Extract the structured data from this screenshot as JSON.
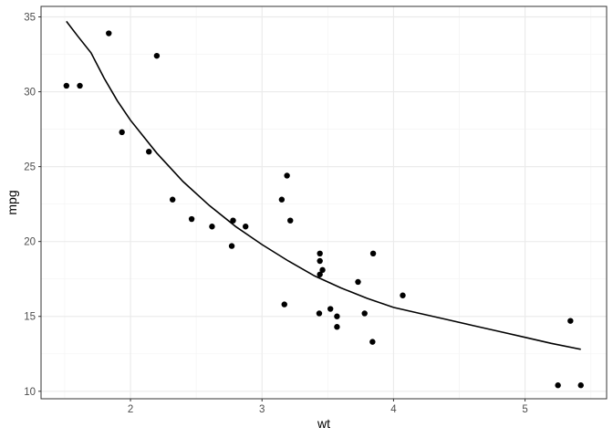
{
  "chart_data": {
    "type": "scatter",
    "title": "",
    "xlabel": "wt",
    "ylabel": "mpg",
    "xlim": [
      1.32,
      5.62
    ],
    "ylim": [
      9.5,
      35.7
    ],
    "x_ticks": [
      2,
      3,
      4,
      5
    ],
    "y_ticks": [
      10,
      15,
      20,
      25,
      30,
      35
    ],
    "x_tick_labels": [
      "2",
      "3",
      "4",
      "5"
    ],
    "y_tick_labels": [
      "10",
      "15",
      "20",
      "25",
      "30",
      "35"
    ],
    "x_minor_ticks": [
      1.5,
      2.5,
      3.5,
      4.5,
      5.5
    ],
    "y_minor_ticks": [
      12.5,
      17.5,
      22.5,
      27.5,
      32.5
    ],
    "grid": true,
    "legend": "none",
    "colors": {
      "points": "#000000",
      "fit_line": "#000000",
      "grid_major": "#ebebeb",
      "grid_minor": "#f5f5f5",
      "panel_border": "#333333",
      "background": "#ffffff"
    },
    "series": [
      {
        "type": "scatter",
        "x": [
          2.62,
          2.875,
          2.32,
          3.215,
          3.44,
          3.46,
          3.57,
          3.19,
          3.15,
          3.44,
          3.44,
          4.07,
          3.73,
          3.78,
          5.25,
          5.424,
          5.345,
          2.2,
          1.615,
          1.835,
          2.465,
          3.52,
          3.435,
          3.84,
          3.845,
          1.935,
          2.14,
          1.513,
          3.17,
          2.77,
          3.57,
          2.78
        ],
        "y": [
          21.0,
          21.0,
          22.8,
          21.4,
          18.7,
          18.1,
          14.3,
          24.4,
          22.8,
          19.2,
          17.8,
          16.4,
          17.3,
          15.2,
          10.4,
          10.4,
          14.7,
          32.4,
          30.4,
          33.9,
          21.5,
          15.5,
          15.2,
          13.3,
          19.2,
          27.3,
          26.0,
          30.4,
          15.8,
          19.7,
          15.0,
          21.4
        ]
      },
      {
        "type": "line",
        "x": [
          1.513,
          1.6,
          1.7,
          1.8,
          1.9,
          2.0,
          2.2,
          2.4,
          2.6,
          2.8,
          3.0,
          3.2,
          3.4,
          3.6,
          3.8,
          4.0,
          4.2,
          4.4,
          4.6,
          4.8,
          5.0,
          5.2,
          5.424
        ],
        "y": [
          34.7,
          33.7,
          32.6,
          30.9,
          29.4,
          28.1,
          25.9,
          24.0,
          22.4,
          21.0,
          19.8,
          18.7,
          17.7,
          16.9,
          16.2,
          15.6,
          15.2,
          14.8,
          14.4,
          14.0,
          13.6,
          13.2,
          12.8
        ]
      }
    ]
  }
}
